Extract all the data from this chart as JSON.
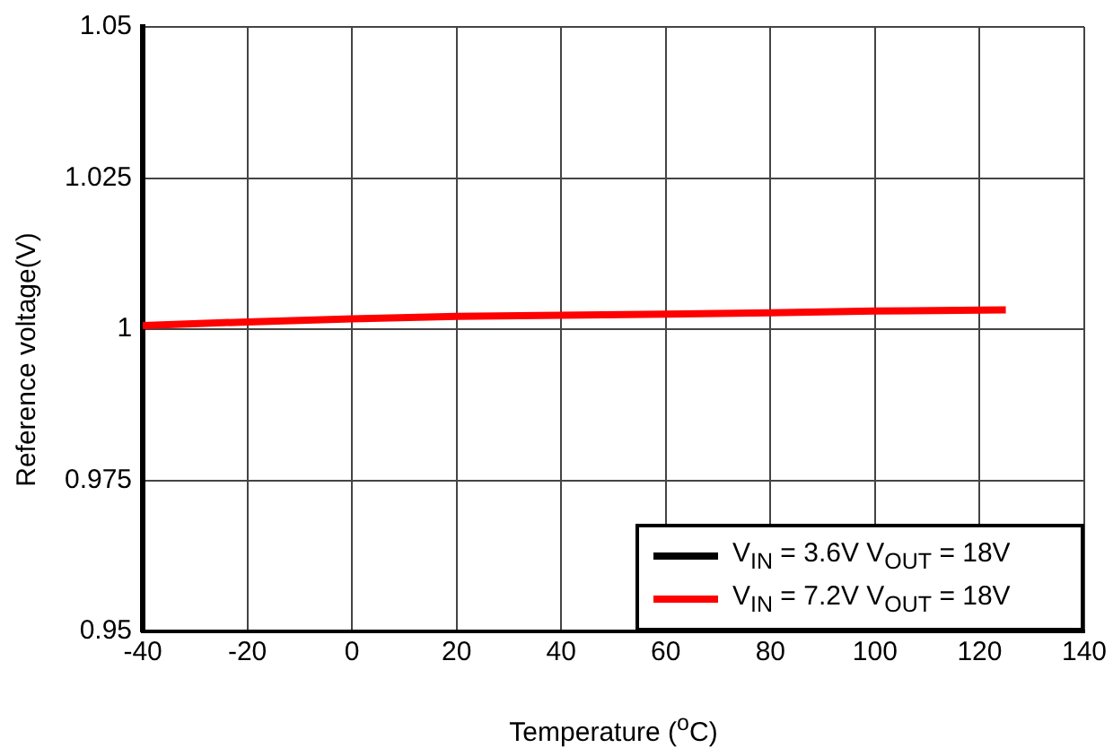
{
  "chart_data": {
    "type": "line",
    "xlabel": "Temperature ($^{o}$C)",
    "ylabel": "Reference voltage(V)",
    "x": [
      -40,
      -20,
      0,
      20,
      40,
      60,
      80,
      100,
      125
    ],
    "series": [
      {
        "name": "V$_{IN}$ = 3.6V V$_{OUT}$ = 18V",
        "color": "#000000",
        "values": [
          null,
          null,
          null,
          null,
          null,
          null,
          null,
          null,
          null
        ]
      },
      {
        "name": "V$_{IN}$ = 7.2V V$_{OUT}$ = 18V",
        "color": "#ff0000",
        "values": [
          1.0006,
          1.0012,
          1.0017,
          1.0021,
          1.0023,
          1.0025,
          1.0027,
          1.003,
          1.0032
        ]
      }
    ],
    "xlim": [
      -40,
      140
    ],
    "xticks": [
      -40,
      -20,
      0,
      20,
      40,
      60,
      80,
      100,
      120,
      140
    ],
    "ylim": [
      0.95,
      1.05
    ],
    "yticks": [
      0.95,
      0.975,
      1,
      1.025,
      1.05
    ],
    "grid": true,
    "legend": "bottom right",
    "marker": "none",
    "line_style": "solid"
  }
}
